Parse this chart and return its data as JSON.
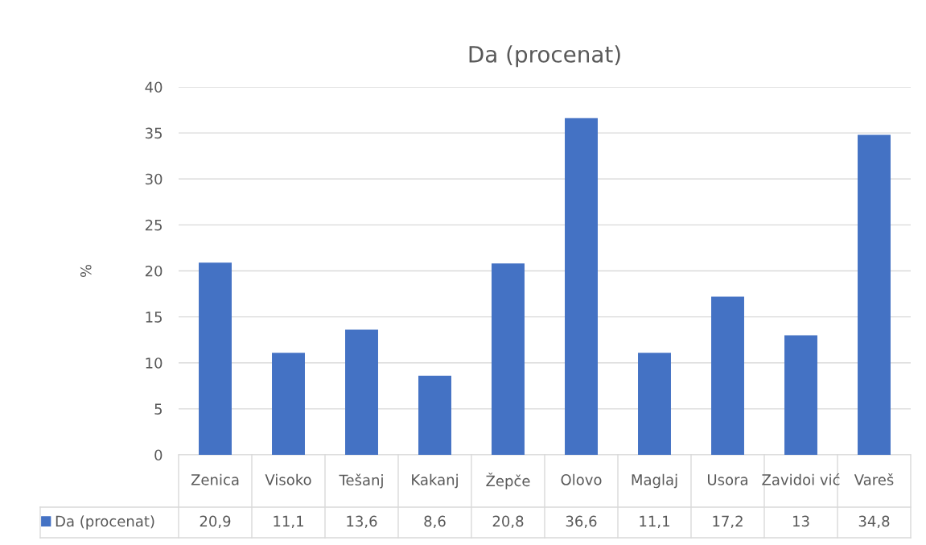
{
  "chart_data": {
    "type": "bar",
    "title": "Da (procenat)",
    "ylabel": "%",
    "categories": [
      "Zenica",
      "Visoko",
      "Tešanj",
      "Kakanj",
      "Žepče",
      "Olovo",
      "Maglaj",
      "Usora",
      "Zavidoi vić",
      "Vareš"
    ],
    "series": [
      {
        "name": "Da (procenat)",
        "color": "#4472c4",
        "values": [
          20.9,
          11.1,
          13.6,
          8.6,
          20.8,
          36.6,
          11.1,
          17.2,
          13,
          34.8
        ],
        "value_labels": [
          "20,9",
          "11,1",
          "13,6",
          "8,6",
          "20,8",
          "36,6",
          "11,1",
          "17,2",
          "13",
          "34,8"
        ]
      }
    ],
    "ylim": [
      0,
      40
    ],
    "yticks": [
      0,
      5,
      10,
      15,
      20,
      25,
      30,
      35,
      40
    ],
    "grid": "y",
    "legend": "bottom left"
  }
}
